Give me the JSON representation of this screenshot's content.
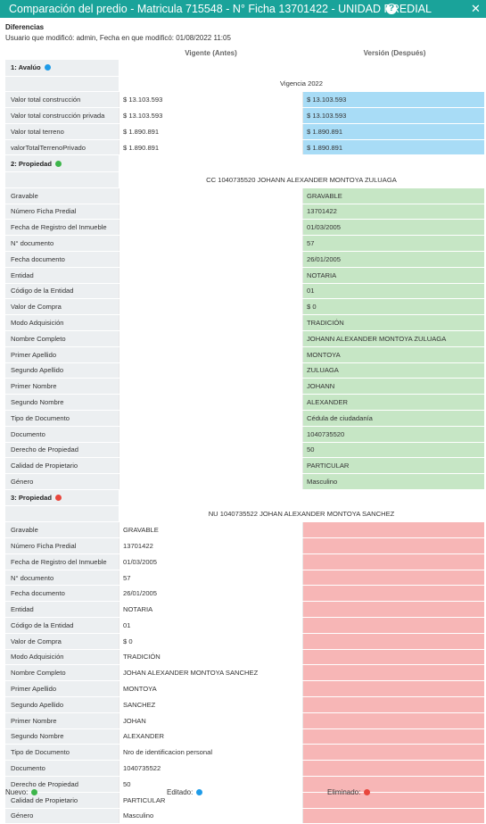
{
  "window": {
    "title": "Comparación del predio - Matricula 715548 - N° Ficha 13701422 - UNIDAD PREDIAL",
    "help": "?",
    "close": "✕"
  },
  "diff": {
    "heading": "Diferencias",
    "user_line": "Usuario que modificó: admin, Fecha en que modificó: 01/08/2022 11:05"
  },
  "columns": {
    "before": "Vigente (Antes)",
    "after": "Versión (Después)"
  },
  "colors": {
    "new": "#3cb54a",
    "edited": "#1e9be8",
    "deleted": "#e8463c"
  },
  "sections": {
    "avaluo": {
      "title": "1: Avalúo",
      "subtitle": "Vigencia 2022",
      "rows": [
        {
          "label": "Valor total construcción",
          "before": "$ 13.103.593",
          "after": "$ 13.103.593"
        },
        {
          "label": "Valor total construcción privada",
          "before": "$ 13.103.593",
          "after": "$ 13.103.593"
        },
        {
          "label": "Valor total terreno",
          "before": "$ 1.890.891",
          "after": "$ 1.890.891"
        },
        {
          "label": "valorTotalTerrenoPrivado",
          "before": "$ 1.890.891",
          "after": "$ 1.890.891"
        }
      ]
    },
    "prop_new": {
      "title": "2: Propiedad",
      "subtitle": "CC 1040735520 JOHANN ALEXANDER MONTOYA ZULUAGA",
      "rows": [
        {
          "label": "Gravable",
          "before": "",
          "after": "GRAVABLE"
        },
        {
          "label": "Número Ficha Predial",
          "before": "",
          "after": "13701422"
        },
        {
          "label": "Fecha de Registro del Inmueble",
          "before": "",
          "after": "01/03/2005"
        },
        {
          "label": "N° documento",
          "before": "",
          "after": "57"
        },
        {
          "label": "Fecha documento",
          "before": "",
          "after": "26/01/2005"
        },
        {
          "label": "Entidad",
          "before": "",
          "after": "NOTARIA"
        },
        {
          "label": "Código de la Entidad",
          "before": "",
          "after": "01"
        },
        {
          "label": "Valor de Compra",
          "before": "",
          "after": "$ 0"
        },
        {
          "label": "Modo Adquisición",
          "before": "",
          "after": "TRADICIÓN"
        },
        {
          "label": "Nombre Completo",
          "before": "",
          "after": "JOHANN ALEXANDER MONTOYA ZULUAGA"
        },
        {
          "label": "Primer Apellido",
          "before": "",
          "after": "MONTOYA"
        },
        {
          "label": "Segundo Apellido",
          "before": "",
          "after": "ZULUAGA"
        },
        {
          "label": "Primer Nombre",
          "before": "",
          "after": "JOHANN"
        },
        {
          "label": "Segundo Nombre",
          "before": "",
          "after": "ALEXANDER"
        },
        {
          "label": "Tipo de Documento",
          "before": "",
          "after": "Cédula de ciudadanía"
        },
        {
          "label": "Documento",
          "before": "",
          "after": "1040735520"
        },
        {
          "label": "Derecho de Propiedad",
          "before": "",
          "after": "50"
        },
        {
          "label": "Calidad de Propietario",
          "before": "",
          "after": "PARTICULAR"
        },
        {
          "label": "Género",
          "before": "",
          "after": "Masculino"
        }
      ]
    },
    "prop_del": {
      "title": "3: Propiedad",
      "subtitle": "NU 1040735522 JOHAN ALEXANDER MONTOYA SANCHEZ",
      "rows": [
        {
          "label": "Gravable",
          "before": "GRAVABLE",
          "after": ""
        },
        {
          "label": "Número Ficha Predial",
          "before": "13701422",
          "after": ""
        },
        {
          "label": "Fecha de Registro del Inmueble",
          "before": "01/03/2005",
          "after": ""
        },
        {
          "label": "N° documento",
          "before": "57",
          "after": ""
        },
        {
          "label": "Fecha documento",
          "before": "26/01/2005",
          "after": ""
        },
        {
          "label": "Entidad",
          "before": "NOTARIA",
          "after": ""
        },
        {
          "label": "Código de la Entidad",
          "before": "01",
          "after": ""
        },
        {
          "label": "Valor de Compra",
          "before": "$ 0",
          "after": ""
        },
        {
          "label": "Modo Adquisición",
          "before": "TRADICIÓN",
          "after": ""
        },
        {
          "label": "Nombre Completo",
          "before": "JOHAN ALEXANDER MONTOYA SANCHEZ",
          "after": ""
        },
        {
          "label": "Primer Apellido",
          "before": "MONTOYA",
          "after": ""
        },
        {
          "label": "Segundo Apellido",
          "before": "SANCHEZ",
          "after": ""
        },
        {
          "label": "Primer Nombre",
          "before": "JOHAN",
          "after": ""
        },
        {
          "label": "Segundo Nombre",
          "before": "ALEXANDER",
          "after": ""
        },
        {
          "label": "Tipo de Documento",
          "before": "Nro de identificacion personal",
          "after": ""
        },
        {
          "label": "Documento",
          "before": "1040735522",
          "after": ""
        },
        {
          "label": "Derecho de Propiedad",
          "before": "50",
          "after": ""
        },
        {
          "label": "Calidad de Propietario",
          "before": "PARTICULAR",
          "after": ""
        },
        {
          "label": "Género",
          "before": "Masculino",
          "after": ""
        }
      ]
    }
  },
  "legend": {
    "new": "Nuevo:",
    "edited": "Editado:",
    "deleted": "Eliminado:"
  }
}
